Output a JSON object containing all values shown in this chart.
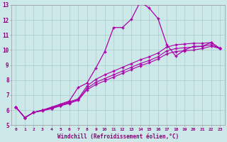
{
  "xlabel": "Windchill (Refroidissement éolien,°C)",
  "xlim": [
    -0.5,
    23.5
  ],
  "ylim": [
    5,
    13
  ],
  "xticks": [
    0,
    1,
    2,
    3,
    4,
    5,
    6,
    7,
    8,
    9,
    10,
    11,
    12,
    13,
    14,
    15,
    16,
    17,
    18,
    19,
    20,
    21,
    22,
    23
  ],
  "yticks": [
    5,
    6,
    7,
    8,
    9,
    10,
    11,
    12,
    13
  ],
  "background_color": "#cce8e8",
  "grid_color": "#aacccc",
  "line_color": "#aa00aa",
  "series_peak": [
    6.2,
    5.5,
    5.85,
    6.0,
    6.2,
    6.4,
    6.6,
    7.5,
    7.8,
    8.8,
    9.9,
    11.5,
    11.5,
    12.05,
    13.2,
    12.8,
    12.1,
    10.35,
    9.6,
    10.0,
    10.25,
    10.25,
    10.5,
    10.1
  ],
  "series_lin1": [
    6.2,
    5.5,
    5.85,
    6.0,
    6.15,
    6.35,
    6.55,
    6.75,
    7.6,
    8.05,
    8.35,
    8.6,
    8.85,
    9.1,
    9.35,
    9.55,
    9.8,
    10.2,
    10.35,
    10.4,
    10.45,
    10.45,
    10.5,
    10.1
  ],
  "series_lin2": [
    6.2,
    5.5,
    5.85,
    6.0,
    6.1,
    6.3,
    6.5,
    6.7,
    7.45,
    7.85,
    8.1,
    8.35,
    8.6,
    8.85,
    9.1,
    9.3,
    9.55,
    9.95,
    10.1,
    10.15,
    10.2,
    10.25,
    10.35,
    10.1
  ],
  "series_lin3": [
    6.2,
    5.5,
    5.85,
    5.95,
    6.1,
    6.28,
    6.45,
    6.65,
    7.35,
    7.7,
    7.95,
    8.2,
    8.45,
    8.7,
    8.95,
    9.15,
    9.4,
    9.75,
    9.9,
    9.95,
    10.0,
    10.1,
    10.25,
    10.1
  ]
}
